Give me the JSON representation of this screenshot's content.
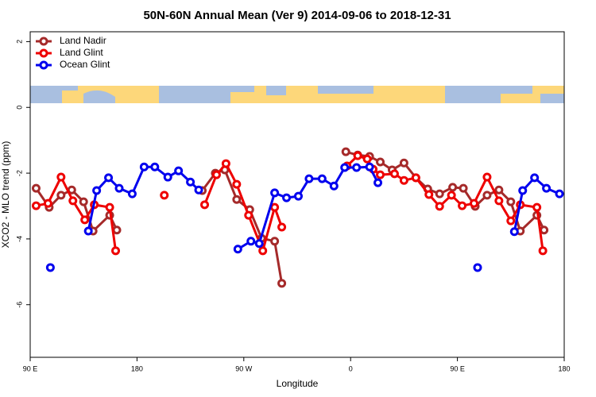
{
  "chart_data": {
    "type": "line",
    "title": "50N-60N Annual Mean (Ver 9)   2014-09-06 to 2018-12-31",
    "x_label": "Longitude",
    "y_label": "XCO2 - MLO trend (ppm)",
    "xlim": [
      90,
      540
    ],
    "xticks": [
      {
        "value": 90,
        "label": "90 E"
      },
      180,
      {
        "value": 270,
        "label": "90 W"
      },
      {
        "value": 360,
        "label": "0"
      },
      {
        "value": 450,
        "label": "90 E"
      },
      {
        "value": 540,
        "label": "180"
      }
    ],
    "ylim": [
      -7.6,
      2.3
    ],
    "yticks": [
      -6,
      -4,
      -2,
      0,
      2
    ],
    "grid": false,
    "legend": "top-left",
    "series": [
      {
        "name": "Land Nadir",
        "color": "#a52a2a",
        "x": [
          95,
          106,
          116,
          125,
          135,
          143,
          157,
          163,
          null,
          235,
          246,
          254,
          264,
          275,
          285,
          296,
          302,
          null,
          356,
          366,
          376,
          385,
          395,
          405,
          415,
          425,
          435,
          446,
          455,
          465,
          475,
          485,
          495,
          503,
          517,
          523
        ],
        "values": [
          -2.46,
          -3.04,
          -2.67,
          -2.51,
          -2.87,
          -3.76,
          -3.28,
          -3.73,
          null,
          -2.53,
          -2.0,
          -1.9,
          -2.8,
          -3.11,
          -3.98,
          -4.07,
          -5.35,
          null,
          -1.35,
          -1.45,
          -1.49,
          -1.66,
          -1.9,
          -1.69,
          -2.14,
          -2.48,
          -2.63,
          -2.43,
          -2.46,
          -3.01,
          -2.67,
          -2.51,
          -2.87,
          -3.76,
          -3.28,
          -3.73
        ]
      },
      {
        "name": "Land Glint",
        "color": "#ee0000",
        "x": [
          95,
          105,
          116,
          126,
          136,
          144,
          157,
          162,
          null,
          203,
          null,
          237,
          247,
          255,
          264,
          274,
          286,
          296,
          302,
          null,
          357,
          366,
          374,
          379,
          385,
          397,
          405,
          415,
          426,
          435,
          445,
          454,
          464,
          475,
          485,
          495,
          503,
          517,
          522
        ],
        "values": [
          -2.99,
          -2.92,
          -2.12,
          -2.84,
          -3.42,
          -2.96,
          -3.04,
          -4.36,
          null,
          -2.67,
          null,
          -2.96,
          -2.05,
          -1.71,
          -2.34,
          -3.28,
          -4.36,
          -3.04,
          -3.64,
          null,
          -1.78,
          -1.47,
          -1.57,
          -1.88,
          -2.05,
          -2.02,
          -2.22,
          -2.14,
          -2.65,
          -3.01,
          -2.67,
          -2.99,
          -2.92,
          -2.12,
          -2.84,
          -3.45,
          -2.96,
          -3.04,
          -4.36
        ]
      },
      {
        "name": "Ocean Glint",
        "color": "#0000ee",
        "x": [
          107,
          null,
          139,
          146,
          156,
          165,
          176,
          186,
          195,
          206,
          215,
          225,
          232,
          null,
          265,
          276,
          283,
          296,
          306,
          316,
          325,
          336,
          346,
          355,
          365,
          376,
          383,
          null,
          467,
          null,
          498,
          505,
          515,
          525,
          536
        ],
        "values": [
          -4.87,
          null,
          -3.76,
          -2.53,
          -2.14,
          -2.46,
          -2.63,
          -1.81,
          -1.81,
          -2.12,
          -1.93,
          -2.27,
          -2.51,
          null,
          -4.31,
          -4.07,
          -4.14,
          -2.6,
          -2.75,
          -2.7,
          -2.17,
          -2.17,
          -2.39,
          -1.83,
          -1.83,
          -1.81,
          -2.29,
          null,
          -4.87,
          null,
          -3.78,
          -2.53,
          -2.14,
          -2.46,
          -2.63
        ]
      }
    ]
  }
}
